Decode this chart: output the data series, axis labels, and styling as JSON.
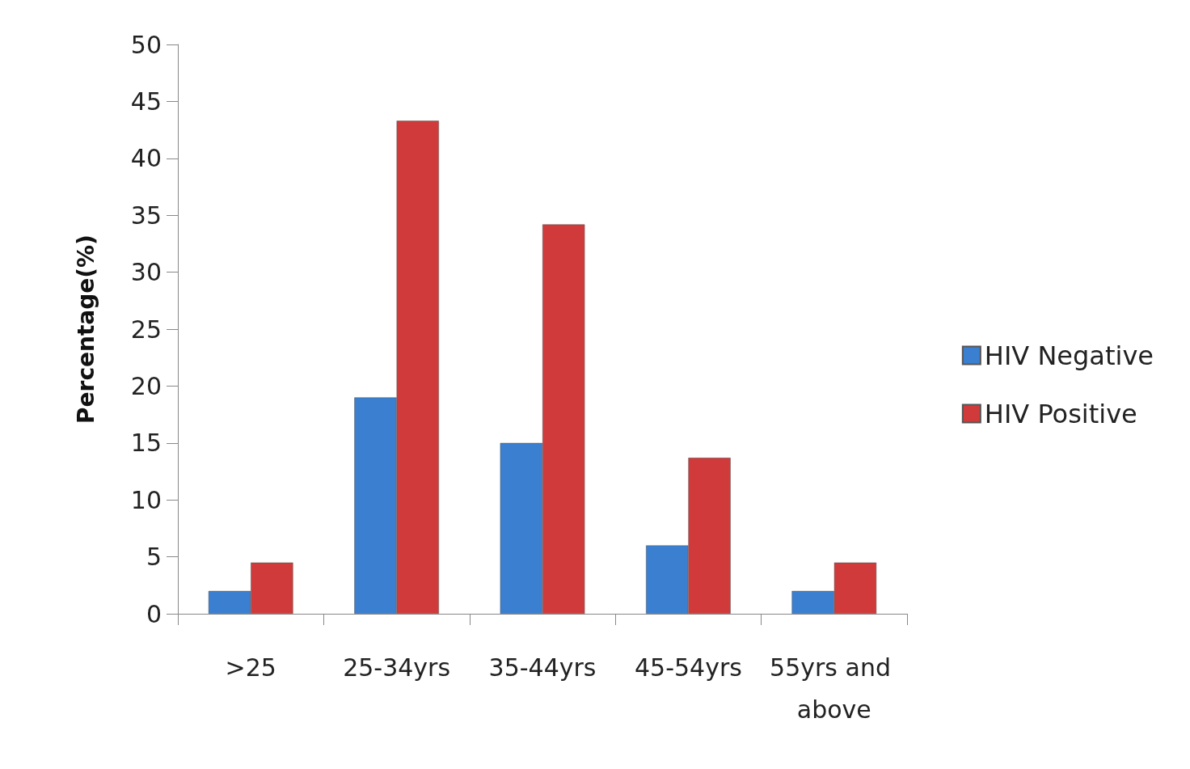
{
  "chart_data": {
    "type": "bar",
    "ylabel": "Percentage(%)",
    "categories": [
      ">25",
      "25-34yrs",
      "35-44yrs",
      "45-54yrs",
      "55yrs and above"
    ],
    "series": [
      {
        "name": "HIV Negative",
        "color": "#3a7fd0",
        "values": [
          2,
          19,
          15,
          6,
          2
        ]
      },
      {
        "name": "HIV Positive",
        "color": "#d03a3a",
        "values": [
          4.5,
          43.3,
          34.2,
          13.7,
          4.5
        ]
      }
    ],
    "ylim": [
      0,
      50
    ],
    "yticks": [
      0,
      5,
      10,
      15,
      20,
      25,
      30,
      35,
      40,
      45,
      50
    ],
    "grid": false,
    "legend": "right"
  }
}
